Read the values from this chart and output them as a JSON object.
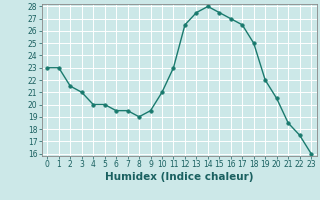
{
  "x": [
    0,
    1,
    2,
    3,
    4,
    5,
    6,
    7,
    8,
    9,
    10,
    11,
    12,
    13,
    14,
    15,
    16,
    17,
    18,
    19,
    20,
    21,
    22,
    23
  ],
  "y": [
    23,
    23,
    21.5,
    21,
    20,
    20,
    19.5,
    19.5,
    19,
    19.5,
    21,
    23,
    26.5,
    27.5,
    28,
    27.5,
    27,
    26.5,
    25,
    22,
    20.5,
    18.5,
    17.5,
    16
  ],
  "line_color": "#1a7a6e",
  "marker_color": "#1a7a6e",
  "bg_color": "#cce8e8",
  "grid_color": "#ffffff",
  "xlabel": "Humidex (Indice chaleur)",
  "ylim_min": 16,
  "ylim_max": 28,
  "xlim_min": -0.5,
  "xlim_max": 23.5,
  "yticks": [
    16,
    17,
    18,
    19,
    20,
    21,
    22,
    23,
    24,
    25,
    26,
    27,
    28
  ],
  "xticks": [
    0,
    1,
    2,
    3,
    4,
    5,
    6,
    7,
    8,
    9,
    10,
    11,
    12,
    13,
    14,
    15,
    16,
    17,
    18,
    19,
    20,
    21,
    22,
    23
  ],
  "tick_fontsize": 5.5,
  "xlabel_fontsize": 7.5,
  "marker_size": 2.5,
  "line_width": 1.0
}
